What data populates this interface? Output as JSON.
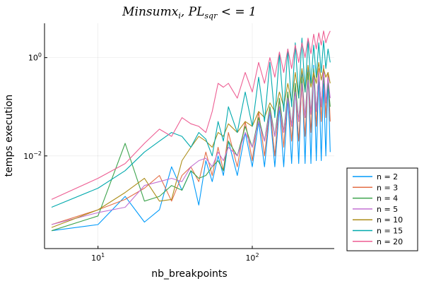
{
  "chart_data": {
    "type": "line",
    "title": "Minsumx_i, PL_sqr < = 1",
    "title_parts": {
      "base": "Minsumx",
      "sub_i": "i",
      "mid": ", PL",
      "sub_sqr": "sqr",
      "tail": " < = 1"
    },
    "xlabel": "nb_breakpoints",
    "ylabel": "temps execution",
    "x_scale": "log10",
    "y_scale": "log10",
    "xlim": [
      4.5,
      340
    ],
    "ylim": [
      0.00013,
      5
    ],
    "x_ticks": [
      {
        "value": 10,
        "base": "10",
        "exp": "1"
      },
      {
        "value": 100,
        "base": "10",
        "exp": "2"
      }
    ],
    "y_ticks": [
      {
        "value": 1,
        "base": "10",
        "exp": "0"
      },
      {
        "value": 0.01,
        "base": "10",
        "exp": "−2"
      }
    ],
    "grid": true,
    "legend_position": "outside-bottom-right",
    "series": [
      {
        "name": "n = 2",
        "color": "#009AFA",
        "points": [
          [
            5,
            0.0003
          ],
          [
            10,
            0.0004
          ],
          [
            15,
            0.0015
          ],
          [
            20,
            0.00045
          ],
          [
            25,
            0.0008
          ],
          [
            30,
            0.006
          ],
          [
            35,
            0.002
          ],
          [
            40,
            0.005
          ],
          [
            45,
            0.001
          ],
          [
            50,
            0.008
          ],
          [
            55,
            0.003
          ],
          [
            60,
            0.01
          ],
          [
            65,
            0.004
          ],
          [
            70,
            0.02
          ],
          [
            80,
            0.004
          ],
          [
            90,
            0.03
          ],
          [
            100,
            0.006
          ],
          [
            110,
            0.05
          ],
          [
            120,
            0.006
          ],
          [
            130,
            0.08
          ],
          [
            140,
            0.006
          ],
          [
            150,
            0.1
          ],
          [
            160,
            0.006
          ],
          [
            170,
            0.15
          ],
          [
            180,
            0.007
          ],
          [
            190,
            0.3
          ],
          [
            200,
            0.007
          ],
          [
            210,
            0.5
          ],
          [
            220,
            0.007
          ],
          [
            230,
            0.6
          ],
          [
            240,
            0.007
          ],
          [
            250,
            0.7
          ],
          [
            260,
            0.008
          ],
          [
            270,
            0.5
          ],
          [
            280,
            0.008
          ],
          [
            290,
            0.3
          ],
          [
            300,
            0.01
          ],
          [
            310,
            0.4
          ],
          [
            320,
            0.012
          ]
        ]
      },
      {
        "name": "n = 3",
        "color": "#E36F47",
        "points": [
          [
            5,
            0.0004
          ],
          [
            10,
            0.0008
          ],
          [
            15,
            0.0013
          ],
          [
            20,
            0.0022
          ],
          [
            25,
            0.004
          ],
          [
            30,
            0.0012
          ],
          [
            35,
            0.004
          ],
          [
            40,
            0.006
          ],
          [
            45,
            0.003
          ],
          [
            50,
            0.012
          ],
          [
            55,
            0.004
          ],
          [
            60,
            0.015
          ],
          [
            65,
            0.005
          ],
          [
            70,
            0.03
          ],
          [
            80,
            0.006
          ],
          [
            90,
            0.05
          ],
          [
            100,
            0.008
          ],
          [
            110,
            0.08
          ],
          [
            120,
            0.01
          ],
          [
            130,
            0.1
          ],
          [
            140,
            0.01
          ],
          [
            150,
            0.15
          ],
          [
            160,
            0.015
          ],
          [
            170,
            0.2
          ],
          [
            180,
            0.02
          ],
          [
            190,
            0.25
          ],
          [
            200,
            0.02
          ],
          [
            210,
            0.3
          ],
          [
            220,
            0.025
          ],
          [
            230,
            0.4
          ],
          [
            240,
            0.03
          ],
          [
            250,
            0.5
          ],
          [
            260,
            0.04
          ],
          [
            270,
            0.6
          ],
          [
            280,
            0.05
          ],
          [
            290,
            0.7
          ],
          [
            300,
            0.06
          ],
          [
            310,
            0.5
          ],
          [
            320,
            0.05
          ]
        ]
      },
      {
        "name": "n = 4",
        "color": "#3EA44E",
        "points": [
          [
            5,
            0.0003
          ],
          [
            10,
            0.0006
          ],
          [
            15,
            0.018
          ],
          [
            20,
            0.0012
          ],
          [
            25,
            0.0015
          ],
          [
            30,
            0.0025
          ],
          [
            35,
            0.002
          ],
          [
            40,
            0.005
          ],
          [
            45,
            0.0035
          ],
          [
            50,
            0.004
          ],
          [
            55,
            0.006
          ],
          [
            60,
            0.008
          ],
          [
            65,
            0.005
          ],
          [
            70,
            0.02
          ],
          [
            80,
            0.01
          ],
          [
            90,
            0.04
          ],
          [
            100,
            0.015
          ],
          [
            110,
            0.06
          ],
          [
            120,
            0.02
          ],
          [
            130,
            0.1
          ],
          [
            140,
            0.025
          ],
          [
            150,
            0.15
          ],
          [
            160,
            0.03
          ],
          [
            170,
            0.2
          ],
          [
            180,
            0.04
          ],
          [
            190,
            0.3
          ],
          [
            200,
            0.05
          ],
          [
            210,
            0.4
          ],
          [
            220,
            0.06
          ],
          [
            230,
            0.5
          ],
          [
            240,
            0.07
          ],
          [
            250,
            0.6
          ],
          [
            260,
            0.08
          ],
          [
            270,
            0.5
          ],
          [
            280,
            0.1
          ],
          [
            290,
            0.4
          ],
          [
            300,
            0.12
          ],
          [
            310,
            0.3
          ],
          [
            320,
            0.1
          ]
        ]
      },
      {
        "name": "n = 5",
        "color": "#C271D2",
        "points": [
          [
            5,
            0.0004
          ],
          [
            10,
            0.0007
          ],
          [
            15,
            0.0009
          ],
          [
            20,
            0.0025
          ],
          [
            25,
            0.003
          ],
          [
            30,
            0.0035
          ],
          [
            35,
            0.003
          ],
          [
            40,
            0.006
          ],
          [
            45,
            0.008
          ],
          [
            50,
            0.009
          ],
          [
            55,
            0.006
          ],
          [
            60,
            0.012
          ],
          [
            65,
            0.008
          ],
          [
            70,
            0.015
          ],
          [
            80,
            0.01
          ],
          [
            90,
            0.03
          ],
          [
            100,
            0.015
          ],
          [
            110,
            0.05
          ],
          [
            120,
            0.02
          ],
          [
            130,
            0.08
          ],
          [
            140,
            0.025
          ],
          [
            150,
            0.1
          ],
          [
            160,
            0.03
          ],
          [
            170,
            0.15
          ],
          [
            180,
            0.04
          ],
          [
            190,
            0.2
          ],
          [
            200,
            0.05
          ],
          [
            210,
            0.3
          ],
          [
            220,
            0.06
          ],
          [
            230,
            0.35
          ],
          [
            240,
            0.07
          ],
          [
            250,
            0.4
          ],
          [
            260,
            0.08
          ],
          [
            270,
            0.5
          ],
          [
            280,
            0.1
          ],
          [
            290,
            0.6
          ],
          [
            300,
            0.12
          ],
          [
            310,
            0.4
          ],
          [
            320,
            0.15
          ]
        ]
      },
      {
        "name": "n = 10",
        "color": "#AC8D18",
        "points": [
          [
            5,
            0.00035
          ],
          [
            10,
            0.0008
          ],
          [
            15,
            0.0018
          ],
          [
            20,
            0.0035
          ],
          [
            25,
            0.0012
          ],
          [
            30,
            0.0013
          ],
          [
            35,
            0.008
          ],
          [
            40,
            0.015
          ],
          [
            45,
            0.025
          ],
          [
            50,
            0.02
          ],
          [
            55,
            0.015
          ],
          [
            60,
            0.03
          ],
          [
            65,
            0.025
          ],
          [
            70,
            0.045
          ],
          [
            80,
            0.03
          ],
          [
            90,
            0.05
          ],
          [
            100,
            0.04
          ],
          [
            110,
            0.08
          ],
          [
            120,
            0.06
          ],
          [
            130,
            0.12
          ],
          [
            140,
            0.08
          ],
          [
            150,
            0.2
          ],
          [
            160,
            0.1
          ],
          [
            170,
            0.3
          ],
          [
            180,
            0.12
          ],
          [
            190,
            0.5
          ],
          [
            200,
            0.15
          ],
          [
            210,
            0.6
          ],
          [
            220,
            0.2
          ],
          [
            230,
            0.7
          ],
          [
            240,
            0.25
          ],
          [
            250,
            0.5
          ],
          [
            260,
            0.3
          ],
          [
            270,
            0.8
          ],
          [
            280,
            0.35
          ],
          [
            290,
            0.6
          ],
          [
            300,
            0.4
          ],
          [
            310,
            0.5
          ],
          [
            320,
            0.3
          ]
        ]
      },
      {
        "name": "n = 15",
        "color": "#00A9AD",
        "points": [
          [
            5,
            0.0009
          ],
          [
            10,
            0.0022
          ],
          [
            15,
            0.005
          ],
          [
            20,
            0.012
          ],
          [
            25,
            0.02
          ],
          [
            30,
            0.03
          ],
          [
            35,
            0.025
          ],
          [
            40,
            0.015
          ],
          [
            45,
            0.03
          ],
          [
            50,
            0.022
          ],
          [
            55,
            0.01
          ],
          [
            60,
            0.05
          ],
          [
            65,
            0.02
          ],
          [
            70,
            0.1
          ],
          [
            80,
            0.03
          ],
          [
            90,
            0.2
          ],
          [
            100,
            0.04
          ],
          [
            110,
            0.4
          ],
          [
            120,
            0.05
          ],
          [
            130,
            0.8
          ],
          [
            140,
            0.06
          ],
          [
            150,
            1.2
          ],
          [
            160,
            0.08
          ],
          [
            170,
            1.5
          ],
          [
            180,
            0.1
          ],
          [
            190,
            2.0
          ],
          [
            200,
            0.15
          ],
          [
            210,
            2.5
          ],
          [
            220,
            0.2
          ],
          [
            230,
            2.2
          ],
          [
            240,
            0.3
          ],
          [
            250,
            1.8
          ],
          [
            260,
            0.4
          ],
          [
            270,
            2.0
          ],
          [
            280,
            0.5
          ],
          [
            290,
            2.2
          ],
          [
            300,
            0.6
          ],
          [
            310,
            1.5
          ],
          [
            320,
            0.8
          ]
        ]
      },
      {
        "name": "n = 20",
        "color": "#ED5E93",
        "points": [
          [
            5,
            0.0013
          ],
          [
            10,
            0.0035
          ],
          [
            15,
            0.007
          ],
          [
            20,
            0.018
          ],
          [
            25,
            0.035
          ],
          [
            30,
            0.025
          ],
          [
            35,
            0.06
          ],
          [
            40,
            0.045
          ],
          [
            45,
            0.04
          ],
          [
            50,
            0.03
          ],
          [
            55,
            0.08
          ],
          [
            60,
            0.3
          ],
          [
            65,
            0.25
          ],
          [
            70,
            0.3
          ],
          [
            80,
            0.15
          ],
          [
            90,
            0.5
          ],
          [
            100,
            0.2
          ],
          [
            110,
            0.8
          ],
          [
            120,
            0.3
          ],
          [
            130,
            1.0
          ],
          [
            140,
            0.4
          ],
          [
            150,
            1.3
          ],
          [
            160,
            0.5
          ],
          [
            170,
            1.5
          ],
          [
            180,
            0.6
          ],
          [
            190,
            1.8
          ],
          [
            200,
            0.8
          ],
          [
            210,
            2.0
          ],
          [
            220,
            1.0
          ],
          [
            230,
            2.5
          ],
          [
            240,
            1.2
          ],
          [
            250,
            3.0
          ],
          [
            260,
            1.5
          ],
          [
            270,
            3.2
          ],
          [
            280,
            1.8
          ],
          [
            290,
            3.5
          ],
          [
            300,
            2.0
          ],
          [
            310,
            2.8
          ],
          [
            320,
            3.5
          ]
        ]
      }
    ]
  }
}
